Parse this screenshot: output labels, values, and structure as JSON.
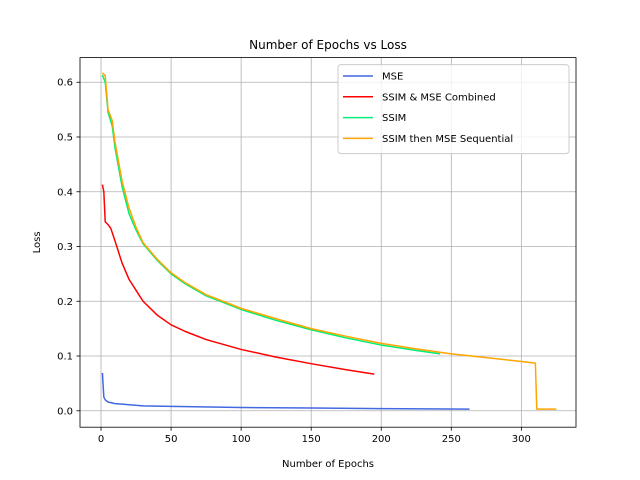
{
  "chart_data": {
    "type": "line",
    "title": "Number of Epochs vs Loss",
    "xlabel": "Number of Epochs",
    "ylabel": "Loss",
    "xlim": [
      -15,
      339
    ],
    "ylim": [
      -0.03,
      0.645
    ],
    "x_ticks": [
      0,
      50,
      100,
      150,
      200,
      250,
      300
    ],
    "y_ticks": [
      0.0,
      0.1,
      0.2,
      0.3,
      0.4,
      0.5,
      0.6
    ],
    "x_tick_labels": [
      "0",
      "50",
      "100",
      "150",
      "200",
      "250",
      "300"
    ],
    "y_tick_labels": [
      "0.0",
      "0.1",
      "0.2",
      "0.3",
      "0.4",
      "0.5",
      "0.6"
    ],
    "grid": true,
    "legend_position": "upper-right",
    "series": [
      {
        "name": "MSE",
        "color": "#4169e1",
        "points": [
          [
            1,
            0.069
          ],
          [
            2,
            0.025
          ],
          [
            3,
            0.02
          ],
          [
            5,
            0.016
          ],
          [
            10,
            0.013
          ],
          [
            20,
            0.011
          ],
          [
            30,
            0.009
          ],
          [
            50,
            0.008
          ],
          [
            100,
            0.006
          ],
          [
            150,
            0.005
          ],
          [
            200,
            0.004
          ],
          [
            263,
            0.003
          ]
        ]
      },
      {
        "name": "SSIM & MSE Combined",
        "color": "#ff0000",
        "points": [
          [
            1,
            0.413
          ],
          [
            2,
            0.4
          ],
          [
            3,
            0.345
          ],
          [
            5,
            0.34
          ],
          [
            7,
            0.333
          ],
          [
            10,
            0.31
          ],
          [
            15,
            0.27
          ],
          [
            20,
            0.24
          ],
          [
            25,
            0.22
          ],
          [
            30,
            0.2
          ],
          [
            40,
            0.175
          ],
          [
            50,
            0.157
          ],
          [
            60,
            0.145
          ],
          [
            75,
            0.13
          ],
          [
            100,
            0.112
          ],
          [
            125,
            0.098
          ],
          [
            150,
            0.086
          ],
          [
            175,
            0.075
          ],
          [
            195,
            0.067
          ]
        ]
      },
      {
        "name": "SSIM",
        "color": "#00ee77",
        "points": [
          [
            1,
            0.613
          ],
          [
            3,
            0.6
          ],
          [
            5,
            0.545
          ],
          [
            8,
            0.52
          ],
          [
            10,
            0.48
          ],
          [
            15,
            0.41
          ],
          [
            20,
            0.36
          ],
          [
            25,
            0.33
          ],
          [
            30,
            0.305
          ],
          [
            40,
            0.275
          ],
          [
            50,
            0.25
          ],
          [
            60,
            0.232
          ],
          [
            75,
            0.21
          ],
          [
            100,
            0.185
          ],
          [
            125,
            0.165
          ],
          [
            150,
            0.148
          ],
          [
            175,
            0.133
          ],
          [
            200,
            0.12
          ],
          [
            225,
            0.11
          ],
          [
            242,
            0.104
          ]
        ]
      },
      {
        "name": "SSIM then MSE Sequential",
        "color": "#ffa500",
        "points": [
          [
            1,
            0.617
          ],
          [
            3,
            0.612
          ],
          [
            5,
            0.55
          ],
          [
            8,
            0.53
          ],
          [
            10,
            0.49
          ],
          [
            15,
            0.42
          ],
          [
            20,
            0.37
          ],
          [
            25,
            0.335
          ],
          [
            30,
            0.307
          ],
          [
            40,
            0.277
          ],
          [
            50,
            0.252
          ],
          [
            60,
            0.234
          ],
          [
            75,
            0.212
          ],
          [
            100,
            0.187
          ],
          [
            125,
            0.168
          ],
          [
            150,
            0.15
          ],
          [
            175,
            0.136
          ],
          [
            200,
            0.123
          ],
          [
            225,
            0.113
          ],
          [
            250,
            0.104
          ],
          [
            275,
            0.097
          ],
          [
            300,
            0.09
          ],
          [
            310,
            0.087
          ],
          [
            311,
            0.003
          ],
          [
            325,
            0.003
          ]
        ]
      }
    ]
  }
}
